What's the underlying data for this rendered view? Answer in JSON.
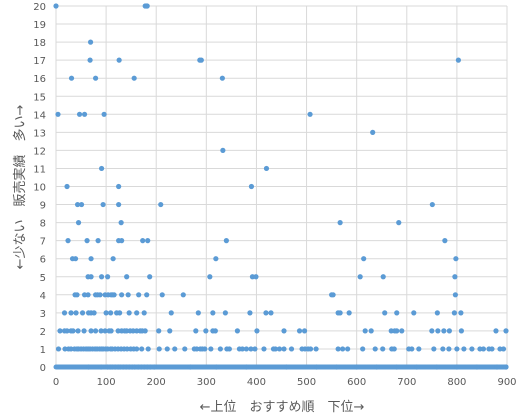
{
  "chart_data": {
    "type": "scatter",
    "xlabel": "←上位　おすすめ順　下位→",
    "ylabel": "←少ない　販売実績　多い→",
    "xlim": [
      0,
      900
    ],
    "ylim": [
      0,
      20
    ],
    "x_ticks": [
      "0",
      "100",
      "200",
      "300",
      "400",
      "500",
      "600",
      "700",
      "800",
      "900"
    ],
    "y_ticks": [
      "0",
      "1",
      "2",
      "3",
      "4",
      "5",
      "6",
      "7",
      "8",
      "9",
      "10",
      "11",
      "12",
      "13",
      "14",
      "15",
      "16",
      "17",
      "18",
      "19",
      "20"
    ],
    "grid": true,
    "marker_color": "#5b9bd5",
    "zero_baseline": {
      "y": 0,
      "x_from": 0,
      "x_to": 898
    },
    "points": [
      [
        0,
        20
      ],
      [
        178,
        20
      ],
      [
        181,
        20
      ],
      [
        182,
        20
      ],
      [
        69,
        18
      ],
      [
        68,
        17
      ],
      [
        126,
        17
      ],
      [
        287,
        17
      ],
      [
        290,
        17
      ],
      [
        803,
        17
      ],
      [
        31,
        16
      ],
      [
        79,
        16
      ],
      [
        156,
        16
      ],
      [
        332,
        16
      ],
      [
        4,
        14
      ],
      [
        47,
        14
      ],
      [
        57,
        14
      ],
      [
        96,
        14
      ],
      [
        507,
        14
      ],
      [
        632,
        13
      ],
      [
        333,
        12
      ],
      [
        420,
        11
      ],
      [
        91,
        11
      ],
      [
        22,
        10
      ],
      [
        125,
        10
      ],
      [
        390,
        10
      ],
      [
        43,
        9
      ],
      [
        51,
        9
      ],
      [
        94,
        9
      ],
      [
        125,
        9
      ],
      [
        209,
        9
      ],
      [
        751,
        9
      ],
      [
        45,
        8
      ],
      [
        130,
        8
      ],
      [
        567,
        8
      ],
      [
        684,
        8
      ],
      [
        24,
        7
      ],
      [
        62,
        7
      ],
      [
        84,
        7
      ],
      [
        125,
        7
      ],
      [
        131,
        7
      ],
      [
        173,
        7
      ],
      [
        183,
        7
      ],
      [
        340,
        7
      ],
      [
        776,
        7
      ],
      [
        33,
        6
      ],
      [
        39,
        6
      ],
      [
        70,
        6
      ],
      [
        114,
        6
      ],
      [
        319,
        6
      ],
      [
        614,
        6
      ],
      [
        798,
        6
      ],
      [
        64,
        5
      ],
      [
        70,
        5
      ],
      [
        91,
        5
      ],
      [
        103,
        5
      ],
      [
        141,
        5
      ],
      [
        187,
        5
      ],
      [
        307,
        5
      ],
      [
        392,
        5
      ],
      [
        399,
        5
      ],
      [
        607,
        5
      ],
      [
        653,
        5
      ],
      [
        796,
        5
      ],
      [
        38,
        4
      ],
      [
        42,
        4
      ],
      [
        57,
        4
      ],
      [
        64,
        4
      ],
      [
        79,
        4
      ],
      [
        83,
        4
      ],
      [
        88,
        4
      ],
      [
        98,
        4
      ],
      [
        104,
        4
      ],
      [
        110,
        4
      ],
      [
        113,
        4
      ],
      [
        116,
        4
      ],
      [
        131,
        4
      ],
      [
        144,
        4
      ],
      [
        165,
        4
      ],
      [
        181,
        4
      ],
      [
        212,
        4
      ],
      [
        254,
        4
      ],
      [
        550,
        4
      ],
      [
        553,
        4
      ],
      [
        797,
        4
      ],
      [
        17,
        3
      ],
      [
        30,
        3
      ],
      [
        40,
        3
      ],
      [
        53,
        3
      ],
      [
        65,
        3
      ],
      [
        70,
        3
      ],
      [
        76,
        3
      ],
      [
        100,
        3
      ],
      [
        109,
        3
      ],
      [
        121,
        3
      ],
      [
        127,
        3
      ],
      [
        146,
        3
      ],
      [
        161,
        3
      ],
      [
        176,
        3
      ],
      [
        230,
        3
      ],
      [
        284,
        3
      ],
      [
        313,
        3
      ],
      [
        338,
        3
      ],
      [
        387,
        3
      ],
      [
        419,
        3
      ],
      [
        429,
        3
      ],
      [
        563,
        3
      ],
      [
        567,
        3
      ],
      [
        585,
        3
      ],
      [
        656,
        3
      ],
      [
        680,
        3
      ],
      [
        714,
        3
      ],
      [
        761,
        3
      ],
      [
        795,
        3
      ],
      [
        808,
        3
      ],
      [
        8,
        2
      ],
      [
        17,
        2
      ],
      [
        22,
        2
      ],
      [
        30,
        2
      ],
      [
        34,
        2
      ],
      [
        44,
        2
      ],
      [
        56,
        2
      ],
      [
        70,
        2
      ],
      [
        79,
        2
      ],
      [
        90,
        2
      ],
      [
        98,
        2
      ],
      [
        106,
        2
      ],
      [
        110,
        2
      ],
      [
        124,
        2
      ],
      [
        131,
        2
      ],
      [
        137,
        2
      ],
      [
        141,
        2
      ],
      [
        148,
        2
      ],
      [
        154,
        2
      ],
      [
        161,
        2
      ],
      [
        168,
        2
      ],
      [
        172,
        2
      ],
      [
        178,
        2
      ],
      [
        205,
        2
      ],
      [
        227,
        2
      ],
      [
        279,
        2
      ],
      [
        299,
        2
      ],
      [
        313,
        2
      ],
      [
        318,
        2
      ],
      [
        362,
        2
      ],
      [
        401,
        2
      ],
      [
        455,
        2
      ],
      [
        486,
        2
      ],
      [
        496,
        2
      ],
      [
        617,
        2
      ],
      [
        629,
        2
      ],
      [
        669,
        2
      ],
      [
        676,
        2
      ],
      [
        680,
        2
      ],
      [
        690,
        2
      ],
      [
        750,
        2
      ],
      [
        762,
        2
      ],
      [
        774,
        2
      ],
      [
        785,
        2
      ],
      [
        809,
        2
      ],
      [
        878,
        2
      ],
      [
        898,
        2
      ],
      [
        5,
        1
      ],
      [
        18,
        1
      ],
      [
        25,
        1
      ],
      [
        30,
        1
      ],
      [
        37,
        1
      ],
      [
        42,
        1
      ],
      [
        45,
        1
      ],
      [
        50,
        1
      ],
      [
        55,
        1
      ],
      [
        60,
        1
      ],
      [
        64,
        1
      ],
      [
        68,
        1
      ],
      [
        73,
        1
      ],
      [
        78,
        1
      ],
      [
        82,
        1
      ],
      [
        87,
        1
      ],
      [
        91,
        1
      ],
      [
        94,
        1
      ],
      [
        99,
        1
      ],
      [
        103,
        1
      ],
      [
        109,
        1
      ],
      [
        112,
        1
      ],
      [
        118,
        1
      ],
      [
        124,
        1
      ],
      [
        130,
        1
      ],
      [
        136,
        1
      ],
      [
        142,
        1
      ],
      [
        149,
        1
      ],
      [
        155,
        1
      ],
      [
        161,
        1
      ],
      [
        171,
        1
      ],
      [
        184,
        1
      ],
      [
        206,
        1
      ],
      [
        222,
        1
      ],
      [
        237,
        1
      ],
      [
        257,
        1
      ],
      [
        276,
        1
      ],
      [
        281,
        1
      ],
      [
        288,
        1
      ],
      [
        292,
        1
      ],
      [
        297,
        1
      ],
      [
        309,
        1
      ],
      [
        328,
        1
      ],
      [
        341,
        1
      ],
      [
        346,
        1
      ],
      [
        366,
        1
      ],
      [
        372,
        1
      ],
      [
        380,
        1
      ],
      [
        389,
        1
      ],
      [
        397,
        1
      ],
      [
        415,
        1
      ],
      [
        434,
        1
      ],
      [
        438,
        1
      ],
      [
        446,
        1
      ],
      [
        455,
        1
      ],
      [
        470,
        1
      ],
      [
        491,
        1
      ],
      [
        497,
        1
      ],
      [
        503,
        1
      ],
      [
        508,
        1
      ],
      [
        519,
        1
      ],
      [
        563,
        1
      ],
      [
        572,
        1
      ],
      [
        582,
        1
      ],
      [
        612,
        1
      ],
      [
        637,
        1
      ],
      [
        652,
        1
      ],
      [
        670,
        1
      ],
      [
        675,
        1
      ],
      [
        704,
        1
      ],
      [
        710,
        1
      ],
      [
        724,
        1
      ],
      [
        754,
        1
      ],
      [
        772,
        1
      ],
      [
        784,
        1
      ],
      [
        800,
        1
      ],
      [
        814,
        1
      ],
      [
        830,
        1
      ],
      [
        846,
        1
      ],
      [
        853,
        1
      ],
      [
        864,
        1
      ],
      [
        870,
        1
      ],
      [
        886,
        1
      ],
      [
        893,
        1
      ]
    ],
    "zero_points_x": [
      65,
      90,
      103,
      108,
      112,
      118,
      124,
      128,
      134,
      140,
      146,
      152,
      157,
      164,
      170,
      176,
      182,
      188,
      196,
      268,
      320,
      380,
      460,
      520,
      560,
      600,
      640,
      680,
      720,
      760,
      800,
      840,
      880,
      898
    ]
  }
}
